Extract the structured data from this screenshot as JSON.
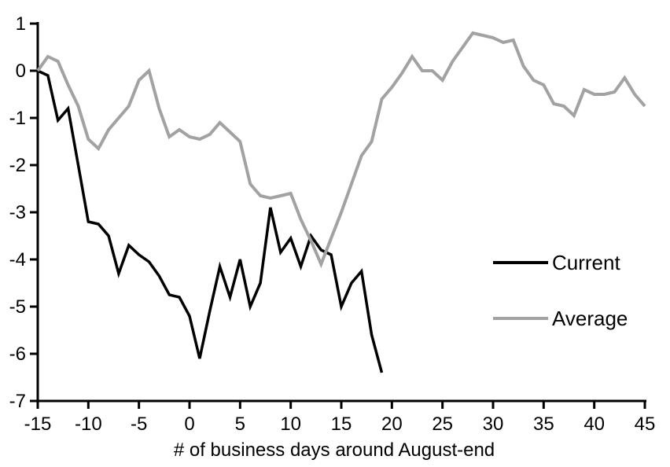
{
  "chart_data": {
    "type": "line",
    "title": "",
    "xlabel": "# of business days around August-end",
    "ylabel": "",
    "xlim": [
      -15,
      45
    ],
    "ylim": [
      -7,
      1
    ],
    "x_ticks": [
      -15,
      -10,
      -5,
      0,
      5,
      10,
      15,
      20,
      25,
      30,
      35,
      40,
      45
    ],
    "y_ticks": [
      1,
      0,
      -1,
      -2,
      -3,
      -4,
      -5,
      -6,
      -7
    ],
    "grid": false,
    "legend_position": "right-middle",
    "axis_color": "#000000",
    "series": [
      {
        "name": "Current",
        "color": "#000000",
        "stroke_width": 3.5,
        "x": [
          -15,
          -14,
          -13,
          -12,
          -11,
          -10,
          -9,
          -8,
          -7,
          -6,
          -5,
          -4,
          -3,
          -2,
          -1,
          0,
          1,
          2,
          3,
          4,
          5,
          6,
          7,
          8,
          9,
          10,
          11,
          12,
          13,
          14,
          15,
          16,
          17,
          18,
          19
        ],
        "values": [
          0,
          -0.1,
          -1.05,
          -0.8,
          -2.0,
          -3.2,
          -3.25,
          -3.5,
          -4.3,
          -3.7,
          -3.9,
          -4.05,
          -4.35,
          -4.75,
          -4.8,
          -5.2,
          -6.1,
          -5.1,
          -4.15,
          -4.8,
          -4.0,
          -5.0,
          -4.5,
          -2.9,
          -3.85,
          -3.55,
          -4.15,
          -3.5,
          -3.8,
          -3.9,
          -5.0,
          -4.5,
          -4.25,
          -5.6,
          -6.4
        ]
      },
      {
        "name": "Average",
        "color": "#a2a2a2",
        "stroke_width": 4,
        "x": [
          -15,
          -14,
          -13,
          -12,
          -11,
          -10,
          -9,
          -8,
          -7,
          -6,
          -5,
          -4,
          -3,
          -2,
          -1,
          0,
          1,
          2,
          3,
          4,
          5,
          6,
          7,
          8,
          9,
          10,
          11,
          12,
          13,
          14,
          15,
          16,
          17,
          18,
          19,
          20,
          21,
          22,
          23,
          24,
          25,
          26,
          27,
          28,
          29,
          30,
          31,
          32,
          33,
          34,
          35,
          36,
          37,
          38,
          39,
          40,
          41,
          42,
          43,
          44,
          45
        ],
        "values": [
          0,
          0.3,
          0.2,
          -0.3,
          -0.75,
          -1.45,
          -1.65,
          -1.25,
          -1.0,
          -0.75,
          -0.2,
          0.0,
          -0.8,
          -1.4,
          -1.25,
          -1.4,
          -1.45,
          -1.35,
          -1.1,
          -1.3,
          -1.5,
          -2.4,
          -2.65,
          -2.7,
          -2.65,
          -2.6,
          -3.15,
          -3.6,
          -4.1,
          -3.55,
          -3.0,
          -2.4,
          -1.8,
          -1.5,
          -0.6,
          -0.35,
          -0.05,
          0.3,
          0.0,
          0.0,
          -0.2,
          0.2,
          0.5,
          0.8,
          0.75,
          0.7,
          0.6,
          0.65,
          0.1,
          -0.2,
          -0.3,
          -0.7,
          -0.75,
          -0.95,
          -0.4,
          -0.5,
          -0.5,
          -0.45,
          -0.15,
          -0.5,
          -0.75
        ]
      }
    ]
  }
}
